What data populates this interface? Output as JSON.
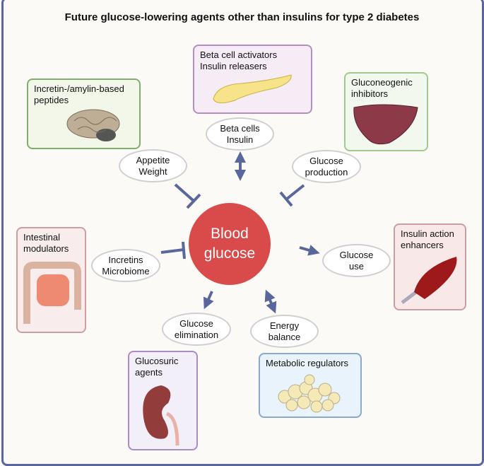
{
  "title": "Future glucose-lowering agents other than insulins for type 2 diabetes",
  "center": {
    "line1": "Blood",
    "line2": "glucose",
    "color": "#d94b4b"
  },
  "arrow_color": "#5a679c",
  "boxes": {
    "incretin": {
      "line1": "Incretin-/amylin-based",
      "line2": "peptides",
      "icon": "brain"
    },
    "beta": {
      "line1": "Beta cell activators",
      "line2": "Insulin releasers",
      "icon": "pancreas"
    },
    "gluconeo": {
      "line1": "Gluconeogenic",
      "line2": "inhibitors",
      "icon": "liver"
    },
    "intestinal": {
      "line1": "Intestinal",
      "line2": "modulators",
      "icon": "intestine"
    },
    "insulin_action": {
      "line1": "Insulin action",
      "line2": "enhancers",
      "icon": "muscle"
    },
    "glucosuric": {
      "line1": "Glucosuric",
      "line2": "agents",
      "icon": "kidney"
    },
    "metabolic": {
      "line1": "Metabolic regulators",
      "icon": "adipose-cells"
    }
  },
  "targets": {
    "appetite": {
      "line1": "Appetite",
      "line2": "Weight",
      "relation": "inhibits"
    },
    "beta_cells": {
      "line1": "Beta cells",
      "line2": "Insulin",
      "relation": "bidirectional"
    },
    "glucose_production": {
      "line1": "Glucose",
      "line2": "production",
      "relation": "inhibits"
    },
    "incretins": {
      "line1": "Incretins",
      "line2": "Microbiome",
      "relation": "inhibits"
    },
    "glucose_use": {
      "line1": "Glucose",
      "line2": "use",
      "relation": "increases"
    },
    "glucose_elimination": {
      "line1": "Glucose",
      "line2": "elimination",
      "relation": "increases"
    },
    "energy_balance": {
      "line1": "Energy",
      "line2": "balance",
      "relation": "bidirectional"
    }
  }
}
